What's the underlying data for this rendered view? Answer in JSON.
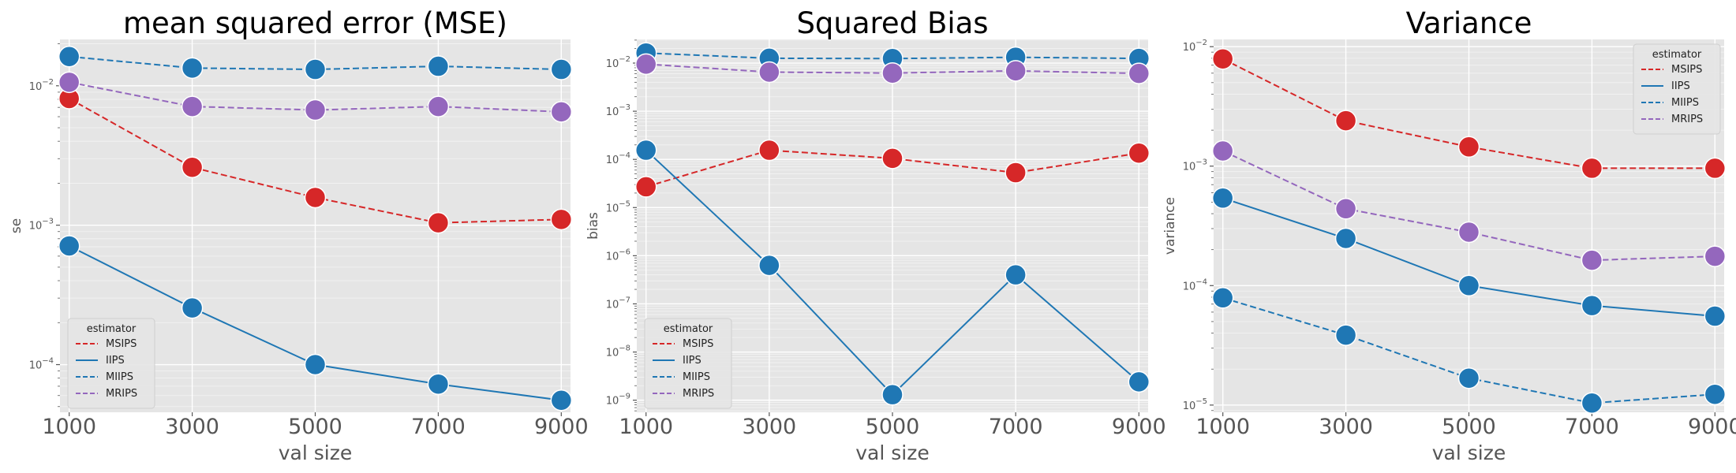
{
  "legend_title": "estimator",
  "colors": {
    "panel_bg": "#e5e5e5",
    "grid": "#ffffff",
    "MSIPS": "#d62728",
    "IIPS": "#1f77b4",
    "MIIPS": "#1f77b4",
    "MRIPS": "#9467bd"
  },
  "chart_data": [
    {
      "type": "line",
      "title": "mean squared error (MSE)",
      "xlabel": "val size",
      "ylabel": "se",
      "yscale": "log",
      "x": [
        1000,
        3000,
        5000,
        7000,
        9000
      ],
      "xlim": [
        850,
        9150
      ],
      "ylim": [
        4.55e-05,
        0.0215
      ],
      "yticks": [
        {
          "value": 0.01,
          "base": "10",
          "exp": "−2"
        },
        {
          "value": 0.001,
          "base": "10",
          "exp": "−3"
        },
        {
          "value": 0.0001,
          "base": "10",
          "exp": "−4"
        }
      ],
      "grid": true,
      "legend": "lower-left",
      "series": [
        {
          "name": "MSIPS",
          "style": "dashed",
          "color": "#d62728",
          "values": [
            0.0081,
            0.0026,
            0.00158,
            0.00104,
            0.0011
          ]
        },
        {
          "name": "IIPS",
          "style": "solid",
          "color": "#1f77b4",
          "values": [
            0.00071,
            0.000255,
            0.0001,
            7.25e-05,
            5.55e-05
          ]
        },
        {
          "name": "MIIPS",
          "style": "dashed",
          "color": "#1f77b4",
          "values": [
            0.0162,
            0.0134,
            0.0131,
            0.0138,
            0.0131
          ]
        },
        {
          "name": "MRIPS",
          "style": "dashed",
          "color": "#9467bd",
          "values": [
            0.0106,
            0.0071,
            0.0067,
            0.0071,
            0.0065
          ]
        }
      ]
    },
    {
      "type": "line",
      "title": "Squared Bias",
      "xlabel": "val size",
      "ylabel": "bias",
      "yscale": "log",
      "x": [
        1000,
        3000,
        5000,
        7000,
        9000
      ],
      "xlim": [
        850,
        9150
      ],
      "ylim": [
        5.6e-10,
        0.031
      ],
      "yticks": [
        {
          "value": 0.01,
          "base": "10",
          "exp": "−2"
        },
        {
          "value": 0.001,
          "base": "10",
          "exp": "−3"
        },
        {
          "value": 0.0001,
          "base": "10",
          "exp": "−4"
        },
        {
          "value": 1e-05,
          "base": "10",
          "exp": "−5"
        },
        {
          "value": 1e-06,
          "base": "10",
          "exp": "−6"
        },
        {
          "value": 1e-07,
          "base": "10",
          "exp": "−7"
        },
        {
          "value": 1e-08,
          "base": "10",
          "exp": "−8"
        },
        {
          "value": 1e-09,
          "base": "10",
          "exp": "−9"
        }
      ],
      "grid": true,
      "legend": "lower-left",
      "series": [
        {
          "name": "MSIPS",
          "style": "dashed",
          "color": "#d62728",
          "values": [
            2.7e-05,
            0.000155,
            0.000105,
            5.3e-05,
            0.000135
          ]
        },
        {
          "name": "IIPS",
          "style": "solid",
          "color": "#1f77b4",
          "values": [
            0.000155,
            6.3e-07,
            1.3e-09,
            4e-07,
            2.4e-09
          ]
        },
        {
          "name": "MIIPS",
          "style": "dashed",
          "color": "#1f77b4",
          "values": [
            0.0162,
            0.0126,
            0.0124,
            0.0132,
            0.0125
          ]
        },
        {
          "name": "MRIPS",
          "style": "dashed",
          "color": "#9467bd",
          "values": [
            0.0095,
            0.0065,
            0.0062,
            0.0069,
            0.0061
          ]
        }
      ]
    },
    {
      "type": "line",
      "title": "Variance",
      "xlabel": "val size",
      "ylabel": "variance",
      "yscale": "log",
      "x": [
        1000,
        3000,
        5000,
        7000,
        9000
      ],
      "xlim": [
        850,
        9150
      ],
      "ylim": [
        8.7e-06,
        0.0115
      ],
      "yticks": [
        {
          "value": 0.01,
          "base": "10",
          "exp": "−2"
        },
        {
          "value": 0.001,
          "base": "10",
          "exp": "−3"
        },
        {
          "value": 0.0001,
          "base": "10",
          "exp": "−4"
        },
        {
          "value": 1e-05,
          "base": "10",
          "exp": "−5"
        }
      ],
      "grid": true,
      "legend": "upper-right",
      "series": [
        {
          "name": "MSIPS",
          "style": "dashed",
          "color": "#d62728",
          "values": [
            0.0079,
            0.0024,
            0.00145,
            0.00096,
            0.00096
          ]
        },
        {
          "name": "IIPS",
          "style": "solid",
          "color": "#1f77b4",
          "values": [
            0.00054,
            0.000248,
            0.0001,
            6.8e-05,
            5.55e-05
          ]
        },
        {
          "name": "MIIPS",
          "style": "dashed",
          "color": "#1f77b4",
          "values": [
            7.9e-05,
            3.85e-05,
            1.68e-05,
            1.04e-05,
            1.23e-05
          ]
        },
        {
          "name": "MRIPS",
          "style": "dashed",
          "color": "#9467bd",
          "values": [
            0.00134,
            0.00044,
            0.00028,
            0.000163,
            0.000176
          ]
        }
      ]
    }
  ]
}
